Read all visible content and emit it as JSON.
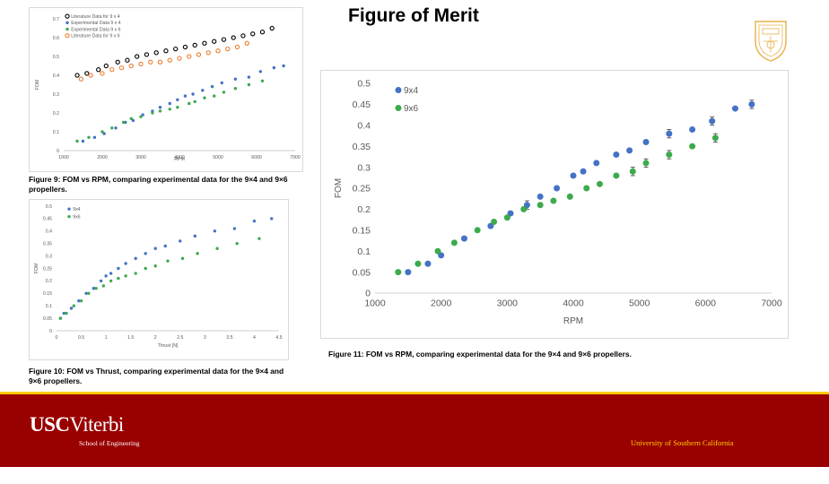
{
  "slide": {
    "title": "Figure of Merit",
    "caption_fig9": "Figure 9: FOM vs RPM, comparing experimental data for the 9×4 and 9×6 propellers.",
    "caption_fig10": "Figure 10: FOM vs Thrust, comparing experimental data for the 9×4 and 9×6 propellers.",
    "caption_fig11": "Figure 11: FOM vs RPM, comparing experimental data for the 9×4 and 9×6 propellers.",
    "footer_logo_main": "USC",
    "footer_logo_second": "Viterbi",
    "footer_logo_sub": "School of Engineering",
    "footer_right": "University of Southern California",
    "colors": {
      "usc_cardinal": "#990000",
      "usc_gold": "#FFCC00",
      "blue": "#4472C4",
      "green": "#3DAA4C",
      "orange": "#ED7D31",
      "black": "#000000"
    }
  },
  "chart_data": [
    {
      "id": "fig9",
      "type": "scatter",
      "title": "",
      "xlabel": "RPM",
      "ylabel": "FOM",
      "xlim": [
        1000,
        7000
      ],
      "ylim": [
        0,
        0.7
      ],
      "xticks": [
        1000,
        2000,
        3000,
        4000,
        5000,
        6000,
        7000
      ],
      "yticks": [
        0,
        0.1,
        0.2,
        0.3,
        0.4,
        0.5,
        0.6,
        0.7
      ],
      "ytick_labels": [
        "0",
        "0.1",
        "0.2",
        "0.3",
        "0.4",
        "0.5",
        "0.6",
        "0.7"
      ],
      "legend_position": "top-left",
      "series": [
        {
          "name": "Literature Data for 9 x 4",
          "color": "#000000",
          "marker": "open-circle",
          "x": [
            1350,
            1600,
            1900,
            2100,
            2400,
            2650,
            2900,
            3150,
            3400,
            3650,
            3900,
            4150,
            4400,
            4650,
            4900,
            5150,
            5400,
            5650,
            5900,
            6150,
            6400
          ],
          "y": [
            0.4,
            0.41,
            0.43,
            0.45,
            0.47,
            0.48,
            0.5,
            0.51,
            0.52,
            0.53,
            0.54,
            0.55,
            0.56,
            0.57,
            0.58,
            0.59,
            0.6,
            0.61,
            0.62,
            0.63,
            0.65
          ]
        },
        {
          "name": "Experimental Data 9 x 4",
          "color": "#4472C4",
          "marker": "dot",
          "x": [
            1500,
            1800,
            2050,
            2350,
            2600,
            2800,
            3050,
            3300,
            3500,
            3750,
            3950,
            4150,
            4350,
            4600,
            4850,
            5100,
            5450,
            5800,
            6100,
            6450,
            6700
          ],
          "y": [
            0.05,
            0.07,
            0.09,
            0.12,
            0.15,
            0.16,
            0.19,
            0.21,
            0.23,
            0.25,
            0.27,
            0.29,
            0.3,
            0.32,
            0.34,
            0.36,
            0.38,
            0.39,
            0.42,
            0.44,
            0.45
          ]
        },
        {
          "name": "Experimental Data 9 x 6",
          "color": "#3DAA4C",
          "marker": "dot",
          "x": [
            1350,
            1650,
            2000,
            2250,
            2550,
            2750,
            3000,
            3300,
            3500,
            3750,
            3950,
            4250,
            4400,
            4650,
            4900,
            5150,
            5450,
            5800,
            6150
          ],
          "y": [
            0.05,
            0.07,
            0.1,
            0.12,
            0.15,
            0.17,
            0.18,
            0.2,
            0.21,
            0.22,
            0.23,
            0.25,
            0.26,
            0.28,
            0.29,
            0.31,
            0.33,
            0.35,
            0.37
          ]
        },
        {
          "name": "Literature Data for 9 x 6",
          "color": "#ED7D31",
          "marker": "open-circle",
          "x": [
            1450,
            1700,
            2000,
            2250,
            2500,
            2750,
            3000,
            3250,
            3500,
            3750,
            4000,
            4250,
            4500,
            4750,
            5000,
            5250,
            5500,
            5750
          ],
          "y": [
            0.38,
            0.4,
            0.41,
            0.43,
            0.44,
            0.45,
            0.46,
            0.47,
            0.47,
            0.48,
            0.49,
            0.5,
            0.51,
            0.52,
            0.53,
            0.54,
            0.55,
            0.57
          ]
        }
      ]
    },
    {
      "id": "fig10",
      "type": "scatter",
      "title": "",
      "xlabel": "Thrust [N]",
      "ylabel": "FOM",
      "xlim": [
        0,
        4.5
      ],
      "ylim": [
        0,
        0.5
      ],
      "xticks": [
        0,
        0.5,
        1,
        1.5,
        2,
        2.5,
        3,
        3.5,
        4,
        4.5
      ],
      "xtick_labels": [
        "0",
        "0.5",
        "1",
        "1.5",
        "2",
        "2.5",
        "3",
        "3.5",
        "4",
        "4.5"
      ],
      "yticks": [
        0,
        0.05,
        0.1,
        0.15,
        0.2,
        0.25,
        0.3,
        0.35,
        0.4,
        0.45,
        0.5
      ],
      "ytick_labels": [
        "0",
        "0.05",
        "0.1",
        "0.15",
        "0.2",
        "0.25",
        "0.3",
        "0.35",
        "0.4",
        "0.45",
        "0.5"
      ],
      "legend_position": "top-left",
      "series": [
        {
          "name": "9x4",
          "color": "#4472C4",
          "marker": "dot",
          "x": [
            0.08,
            0.15,
            0.3,
            0.45,
            0.6,
            0.75,
            0.9,
            1.0,
            1.1,
            1.25,
            1.4,
            1.6,
            1.8,
            2.0,
            2.2,
            2.5,
            2.8,
            3.2,
            3.6,
            4.0,
            4.35
          ],
          "y": [
            0.05,
            0.07,
            0.09,
            0.12,
            0.15,
            0.17,
            0.2,
            0.22,
            0.23,
            0.25,
            0.27,
            0.29,
            0.31,
            0.33,
            0.34,
            0.36,
            0.38,
            0.4,
            0.41,
            0.44,
            0.45
          ]
        },
        {
          "name": "9x6",
          "color": "#3DAA4C",
          "marker": "dot",
          "x": [
            0.08,
            0.2,
            0.35,
            0.5,
            0.65,
            0.8,
            0.95,
            1.1,
            1.25,
            1.4,
            1.6,
            1.8,
            2.0,
            2.25,
            2.55,
            2.85,
            3.25,
            3.65,
            4.1
          ],
          "y": [
            0.05,
            0.07,
            0.1,
            0.12,
            0.15,
            0.17,
            0.18,
            0.2,
            0.21,
            0.22,
            0.23,
            0.25,
            0.26,
            0.28,
            0.29,
            0.31,
            0.33,
            0.35,
            0.37
          ]
        }
      ]
    },
    {
      "id": "fig11",
      "type": "scatter",
      "title": "",
      "xlabel": "RPM",
      "ylabel": "FOM",
      "xlim": [
        1000,
        7000
      ],
      "ylim": [
        0,
        0.5
      ],
      "xticks": [
        1000,
        2000,
        3000,
        4000,
        5000,
        6000,
        7000
      ],
      "yticks": [
        0,
        0.05,
        0.1,
        0.15,
        0.2,
        0.25,
        0.3,
        0.35,
        0.4,
        0.45,
        0.5
      ],
      "ytick_labels": [
        "0",
        "0.05",
        "0.1",
        "0.15",
        "0.2",
        "0.25",
        "0.3",
        "0.35",
        "0.4",
        "0.45",
        "0.5"
      ],
      "legend_position": "top-left",
      "series": [
        {
          "name": "9x4",
          "color": "#4472C4",
          "marker": "dot",
          "x": [
            1500,
            1800,
            2000,
            2350,
            2750,
            3050,
            3300,
            3500,
            3750,
            4000,
            4150,
            4350,
            4650,
            4850,
            5100,
            5450,
            5800,
            6100,
            6450,
            6700
          ],
          "y": [
            0.05,
            0.07,
            0.09,
            0.13,
            0.16,
            0.19,
            0.21,
            0.23,
            0.25,
            0.28,
            0.29,
            0.31,
            0.33,
            0.34,
            0.36,
            0.38,
            0.39,
            0.41,
            0.44,
            0.45
          ],
          "err": [
            0,
            0,
            0,
            0,
            0,
            0,
            0.01,
            0,
            0,
            0,
            0,
            0,
            0,
            0,
            0,
            0.01,
            0,
            0.01,
            0,
            0.01
          ]
        },
        {
          "name": "9x6",
          "color": "#3DAA4C",
          "marker": "dot",
          "x": [
            1350,
            1650,
            1950,
            2200,
            2550,
            2800,
            3000,
            3250,
            3500,
            3700,
            3950,
            4200,
            4400,
            4650,
            4900,
            5100,
            5450,
            5800,
            6150
          ],
          "y": [
            0.05,
            0.07,
            0.1,
            0.12,
            0.15,
            0.17,
            0.18,
            0.2,
            0.21,
            0.22,
            0.23,
            0.25,
            0.26,
            0.28,
            0.29,
            0.31,
            0.33,
            0.35,
            0.37
          ],
          "err": [
            0,
            0,
            0,
            0,
            0,
            0,
            0,
            0,
            0,
            0,
            0,
            0,
            0,
            0,
            0.01,
            0.01,
            0.01,
            0,
            0.01
          ]
        }
      ]
    }
  ]
}
